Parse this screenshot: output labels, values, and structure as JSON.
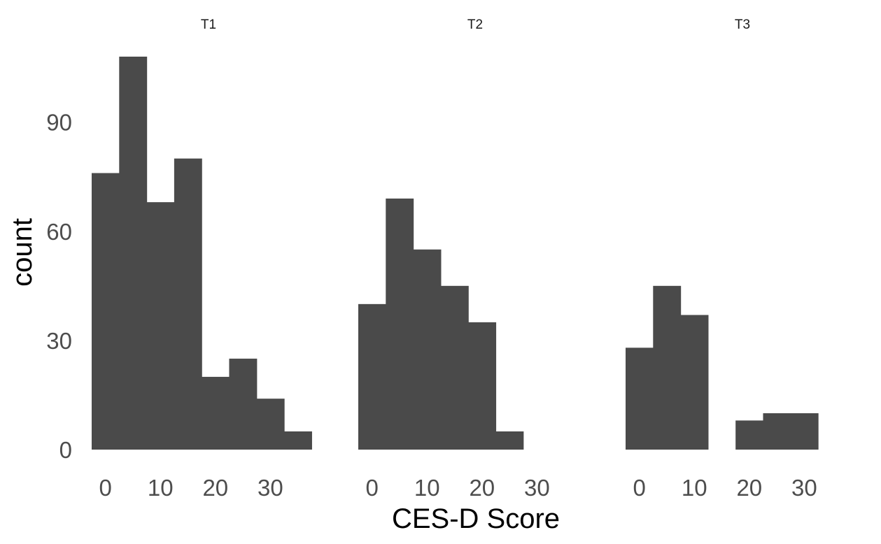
{
  "chart_data": {
    "type": "bar",
    "subtype": "faceted-histogram",
    "xlabel": "CES-D Score",
    "ylabel": "count",
    "ylim": [
      0,
      108
    ],
    "y_ticks": [
      0,
      30,
      60,
      90
    ],
    "x_ticks": [
      0,
      10,
      20,
      30
    ],
    "xlim": [
      -2.5,
      40
    ],
    "bin_width": 5,
    "grid": false,
    "bar_color": "#4a4a4a",
    "facets": [
      {
        "label": "T1",
        "bins": [
          {
            "start": -2.5,
            "end": 2.5,
            "count": 76
          },
          {
            "start": 2.5,
            "end": 7.5,
            "count": 108
          },
          {
            "start": 7.5,
            "end": 12.5,
            "count": 68
          },
          {
            "start": 12.5,
            "end": 17.5,
            "count": 80
          },
          {
            "start": 17.5,
            "end": 22.5,
            "count": 20
          },
          {
            "start": 22.5,
            "end": 27.5,
            "count": 25
          },
          {
            "start": 27.5,
            "end": 32.5,
            "count": 14
          },
          {
            "start": 32.5,
            "end": 37.5,
            "count": 5
          }
        ]
      },
      {
        "label": "T2",
        "bins": [
          {
            "start": -2.5,
            "end": 2.5,
            "count": 40
          },
          {
            "start": 2.5,
            "end": 7.5,
            "count": 69
          },
          {
            "start": 7.5,
            "end": 12.5,
            "count": 55
          },
          {
            "start": 12.5,
            "end": 17.5,
            "count": 45
          },
          {
            "start": 17.5,
            "end": 22.5,
            "count": 35
          },
          {
            "start": 22.5,
            "end": 27.5,
            "count": 5
          }
        ]
      },
      {
        "label": "T3",
        "bins": [
          {
            "start": -2.5,
            "end": 2.5,
            "count": 28
          },
          {
            "start": 2.5,
            "end": 7.5,
            "count": 45
          },
          {
            "start": 7.5,
            "end": 12.5,
            "count": 37
          },
          {
            "start": 17.5,
            "end": 22.5,
            "count": 8
          },
          {
            "start": 22.5,
            "end": 27.5,
            "count": 10
          },
          {
            "start": 27.5,
            "end": 32.5,
            "count": 10
          }
        ]
      }
    ]
  }
}
